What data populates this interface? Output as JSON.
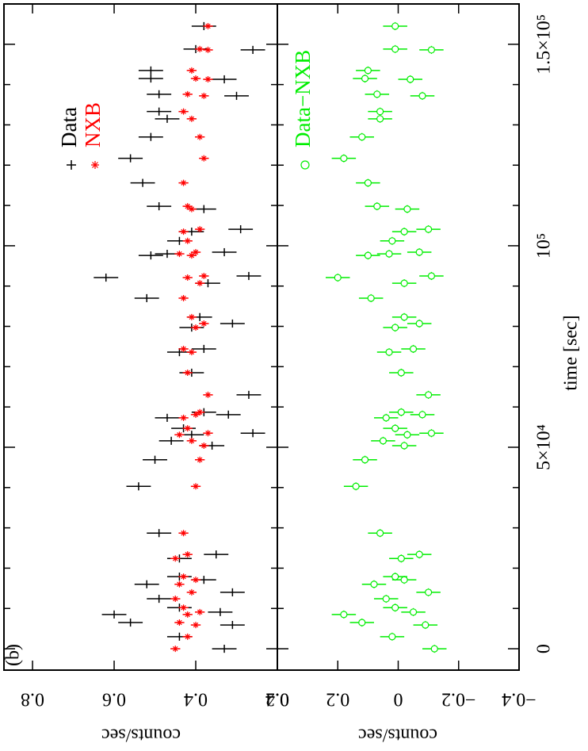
{
  "chart_data": [
    {
      "type": "scatter",
      "label": "(b)",
      "ylabel": "counts/sec",
      "ylim": [
        0.2,
        0.87
      ],
      "yticks": [
        0.2,
        0.4,
        0.6,
        0.8
      ],
      "xlim": [
        -5300,
        160000
      ],
      "xerr": 1000,
      "x": [
        0,
        3000,
        5900,
        6500,
        8500,
        9100,
        10200,
        12400,
        14000,
        16000,
        17100,
        17900,
        22400,
        23400,
        28700,
        40300,
        46900,
        50400,
        51600,
        53100,
        53500,
        54700,
        57300,
        58100,
        58700,
        63000,
        68500,
        73600,
        74400,
        79700,
        80700,
        82300,
        87000,
        90700,
        92100,
        92500,
        97600,
        98000,
        98400,
        101200,
        103500,
        104100,
        109100,
        109800,
        115600,
        121700,
        127000,
        131500,
        133300,
        137200,
        137600,
        141300,
        141500,
        143500,
        148600,
        148800,
        154500
      ],
      "series": [
        {
          "name": "Data",
          "color": "#000000",
          "marker": "plus",
          "error": 0.03,
          "values": [
            0.33,
            0.44,
            0.31,
            0.56,
            0.6,
            0.34,
            0.44,
            0.49,
            0.31,
            0.52,
            0.38,
            0.44,
            0.44,
            0.35,
            0.49,
            0.54,
            0.5,
            0.36,
            0.46,
            0.41,
            0.26,
            0.43,
            0.47,
            0.32,
            0.38,
            0.27,
            0.41,
            0.44,
            0.38,
            0.41,
            0.31,
            0.39,
            0.52,
            0.37,
            0.62,
            0.27,
            0.51,
            0.47,
            0.33,
            0.44,
            0.41,
            0.29,
            0.38,
            0.49,
            0.53,
            0.56,
            0.51,
            0.47,
            0.49,
            0.3,
            0.49,
            0.33,
            0.51,
            0.51,
            0.26,
            0.4,
            0.38
          ]
        },
        {
          "name": "NXB",
          "color": "#ff0000",
          "marker": "star",
          "error": 0.012,
          "values": [
            0.45,
            0.42,
            0.4,
            0.44,
            0.42,
            0.39,
            0.43,
            0.45,
            0.41,
            0.44,
            0.4,
            0.43,
            0.45,
            0.42,
            0.43,
            0.4,
            0.39,
            0.38,
            0.41,
            0.44,
            0.37,
            0.42,
            0.43,
            0.4,
            0.39,
            0.37,
            0.42,
            0.41,
            0.43,
            0.4,
            0.38,
            0.41,
            0.43,
            0.39,
            0.42,
            0.38,
            0.41,
            0.44,
            0.4,
            0.42,
            0.43,
            0.39,
            0.41,
            0.42,
            0.43,
            0.38,
            0.39,
            0.41,
            0.43,
            0.38,
            0.42,
            0.37,
            0.4,
            0.41,
            0.37,
            0.39,
            0.37
          ]
        }
      ]
    },
    {
      "type": "scatter",
      "ylabel": "counts/sec",
      "xlabel": "time [sec]",
      "ylim": [
        -0.4,
        0.4
      ],
      "yticks": [
        {
          "value": -0.4,
          "label": "−0.4"
        },
        {
          "value": -0.2,
          "label": "−0.2"
        },
        0,
        0.2,
        0.4
      ],
      "xlim": [
        -5300,
        160000
      ],
      "xerr": 1000,
      "xticks": [
        0,
        {
          "value": 50000,
          "label": "5×10⁴"
        },
        {
          "value": 100000,
          "label": "10⁵"
        },
        {
          "value": 150000,
          "label": "1.5×10⁵"
        }
      ],
      "xminorticks": [
        10000,
        20000,
        30000,
        40000,
        60000,
        70000,
        80000,
        90000,
        110000,
        120000,
        130000,
        140000
      ],
      "x": [
        0,
        3000,
        5900,
        6500,
        8500,
        9100,
        10200,
        12400,
        14000,
        16000,
        17100,
        17900,
        22400,
        23400,
        28700,
        40300,
        46900,
        50400,
        51600,
        53100,
        53500,
        54700,
        57300,
        58100,
        58700,
        63000,
        68500,
        73600,
        74400,
        79700,
        80700,
        82300,
        87000,
        90700,
        92100,
        92500,
        97600,
        98000,
        98400,
        101200,
        103500,
        104100,
        109100,
        109800,
        115600,
        121700,
        127000,
        131500,
        133300,
        137200,
        137600,
        141300,
        141500,
        143500,
        148600,
        148800,
        154500
      ],
      "series": [
        {
          "name": "Data−NXB",
          "color": "#00ee00",
          "marker": "circle",
          "error": 0.04,
          "values": [
            -0.12,
            0.02,
            -0.09,
            0.12,
            0.18,
            -0.05,
            0.01,
            0.04,
            -0.1,
            0.08,
            -0.02,
            0.01,
            -0.01,
            -0.07,
            0.06,
            0.14,
            0.11,
            -0.02,
            0.05,
            -0.03,
            -0.11,
            0.01,
            0.04,
            -0.08,
            -0.01,
            -0.1,
            -0.01,
            0.03,
            -0.05,
            0.01,
            -0.07,
            -0.02,
            0.09,
            -0.02,
            0.2,
            -0.11,
            0.1,
            0.03,
            -0.07,
            0.02,
            -0.02,
            -0.1,
            -0.03,
            0.07,
            0.1,
            0.18,
            0.12,
            0.06,
            0.06,
            -0.08,
            0.07,
            -0.04,
            0.11,
            0.1,
            -0.11,
            0.01,
            0.01
          ]
        }
      ]
    }
  ]
}
